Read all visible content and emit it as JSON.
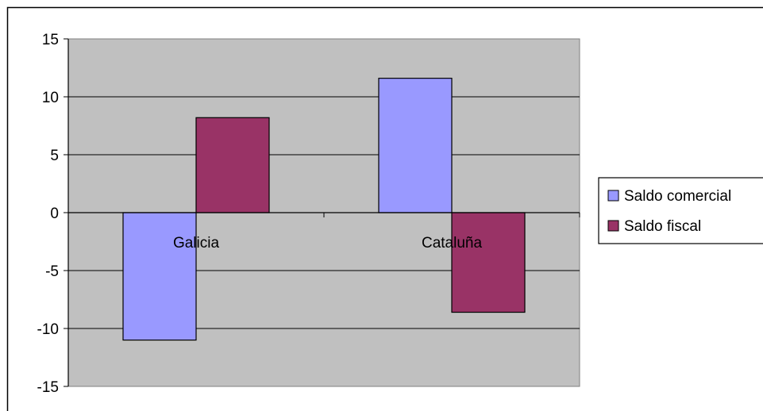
{
  "chart_data": {
    "type": "bar",
    "categories": [
      "Galicia",
      "Cataluña"
    ],
    "series": [
      {
        "name": "Saldo comercial",
        "color": "#9999FF",
        "values": [
          -11,
          11.6
        ]
      },
      {
        "name": "Saldo fiscal",
        "color": "#993366",
        "values": [
          8.2,
          -8.6
        ]
      }
    ],
    "ylim": [
      -15,
      15
    ],
    "yticks": [
      "15",
      "10",
      "5",
      "0",
      "-5",
      "-10",
      "-15"
    ],
    "ytick_values": [
      15,
      10,
      5,
      0,
      -5,
      -10,
      -15
    ],
    "grid": true,
    "plot_background": "#C0C0C0",
    "legend_position": "right",
    "title": "",
    "xlabel": "",
    "ylabel": ""
  }
}
